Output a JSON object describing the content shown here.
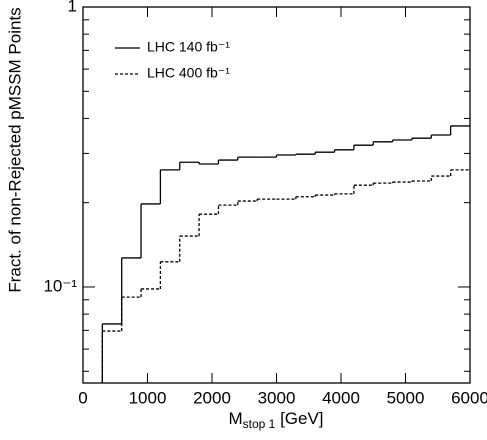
{
  "chart_data": {
    "type": "histogram",
    "xlabel": "M",
    "xlabel_sub": "stop 1",
    "xlabel_unit": " [GeV]",
    "ylabel": "Fract. of non-Rejected pMSSM Points",
    "bins": [
      300,
      600,
      900,
      1200,
      1500,
      1800,
      2100,
      2400,
      2700,
      3000,
      3300,
      3600,
      3900,
      4200,
      4500,
      4800,
      5100,
      5400,
      5700,
      6000
    ],
    "series": [
      {
        "name": "LHC 140 fb⁻¹",
        "color": "#000000",
        "style": "solid",
        "values": [
          0.0738,
          0.127,
          0.198,
          0.262,
          0.279,
          0.275,
          0.284,
          0.291,
          0.291,
          0.296,
          0.298,
          0.303,
          0.309,
          0.321,
          0.33,
          0.335,
          0.34,
          0.349,
          0.376
        ]
      },
      {
        "name": "LHC 400 fb⁻¹",
        "color": "#000000",
        "style": "dashed",
        "values": [
          0.0696,
          0.092,
          0.0984,
          0.123,
          0.152,
          0.182,
          0.196,
          0.2027,
          0.206,
          0.206,
          0.21,
          0.213,
          0.215,
          0.231,
          0.235,
          0.237,
          0.239,
          0.249,
          0.262
        ]
      }
    ],
    "xlim": [
      0,
      6000
    ],
    "xticks": [
      0,
      1000,
      2000,
      3000,
      4000,
      5000,
      6000
    ],
    "ylim": [
      0.0454,
      1
    ],
    "yticks": [
      1,
      {
        "value": 0.1,
        "label": "10⁻¹"
      }
    ],
    "yminorticks": [
      0.05,
      0.06,
      0.07,
      0.08,
      0.09,
      0.2,
      0.3,
      0.4,
      0.5,
      0.6,
      0.7,
      0.8,
      0.9
    ],
    "log_y": true,
    "legend": "upper-left"
  }
}
